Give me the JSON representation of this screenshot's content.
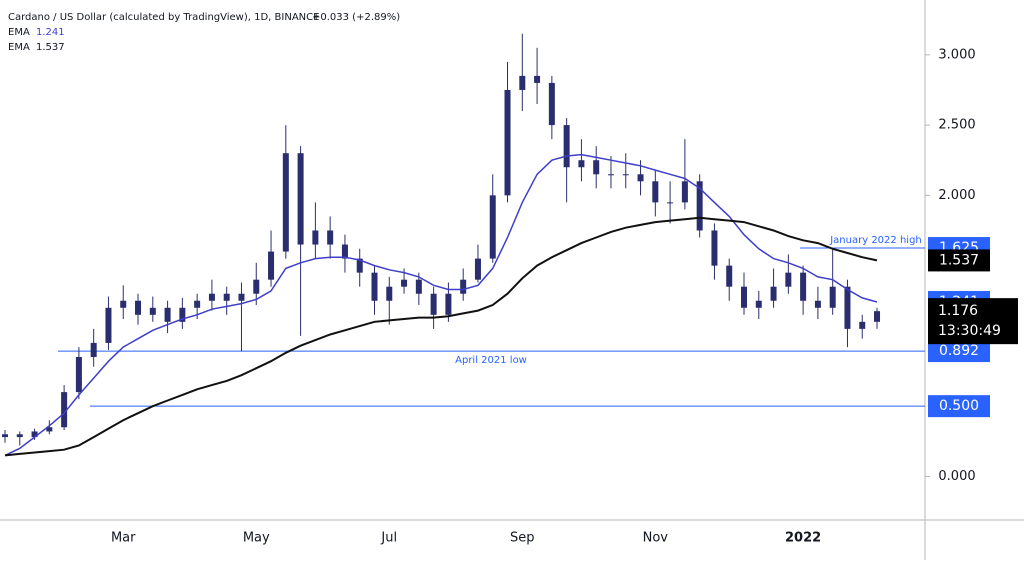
{
  "chart_data": {
    "type": "candlestick",
    "title": "Cardano / US Dollar (calculated by TradingView), 1D, BINANCE",
    "change": "+0.033 (+2.89%)",
    "candle_color": "#2a2e6e",
    "categories": [
      null,
      null,
      null,
      null,
      null,
      null,
      null,
      null,
      "Mar",
      null,
      null,
      null,
      null,
      null,
      null,
      null,
      null,
      "May",
      null,
      null,
      null,
      null,
      null,
      null,
      null,
      null,
      "Jul",
      null,
      null,
      null,
      null,
      null,
      null,
      null,
      null,
      "Sep",
      null,
      null,
      null,
      null,
      null,
      null,
      null,
      null,
      "Nov",
      null,
      null,
      null,
      null,
      null,
      null,
      null,
      null,
      null,
      "2022",
      null,
      null,
      null,
      null,
      null
    ],
    "open": [
      0.28,
      0.3,
      0.28,
      0.32,
      0.35,
      0.6,
      0.85,
      0.95,
      1.2,
      1.25,
      1.15,
      1.2,
      1.1,
      1.2,
      1.25,
      1.3,
      1.25,
      1.3,
      1.4,
      1.6,
      2.3,
      1.65,
      1.75,
      1.65,
      1.55,
      1.45,
      1.25,
      1.35,
      1.4,
      1.3,
      1.15,
      1.3,
      1.4,
      1.55,
      2.0,
      2.75,
      2.85,
      2.8,
      2.5,
      2.2,
      2.25,
      2.15,
      2.15,
      2.15,
      2.1,
      1.95,
      1.95,
      2.1,
      1.75,
      1.5,
      1.35,
      1.2,
      1.25,
      1.35,
      1.45,
      1.25,
      1.2,
      1.35,
      1.05,
      1.1
    ],
    "high": [
      0.33,
      0.32,
      0.34,
      0.4,
      0.65,
      0.92,
      1.05,
      1.28,
      1.36,
      1.3,
      1.28,
      1.25,
      1.27,
      1.3,
      1.4,
      1.35,
      1.38,
      1.52,
      1.75,
      2.5,
      2.35,
      1.95,
      1.85,
      1.72,
      1.62,
      1.5,
      1.42,
      1.48,
      1.45,
      1.35,
      1.38,
      1.48,
      1.65,
      2.15,
      2.95,
      3.15,
      3.05,
      2.85,
      2.55,
      2.4,
      2.35,
      2.28,
      2.3,
      2.25,
      2.18,
      2.1,
      2.4,
      2.15,
      1.8,
      1.55,
      1.45,
      1.32,
      1.48,
      1.58,
      1.5,
      1.35,
      1.62,
      1.4,
      1.15,
      1.2
    ],
    "low": [
      0.24,
      0.22,
      0.26,
      0.3,
      0.33,
      0.55,
      0.78,
      0.9,
      1.12,
      1.08,
      1.1,
      1.02,
      1.05,
      1.12,
      1.18,
      1.15,
      0.89,
      1.22,
      1.35,
      1.55,
      1.0,
      1.55,
      1.55,
      1.45,
      1.35,
      1.15,
      1.08,
      1.3,
      1.22,
      1.05,
      1.1,
      1.25,
      1.38,
      1.52,
      1.95,
      2.6,
      2.65,
      2.4,
      1.95,
      2.1,
      2.05,
      2.05,
      2.05,
      2.0,
      1.85,
      1.8,
      1.9,
      1.7,
      1.4,
      1.25,
      1.15,
      1.12,
      1.2,
      1.3,
      1.15,
      1.12,
      1.15,
      0.92,
      0.98,
      1.05
    ],
    "close": [
      0.3,
      0.28,
      0.32,
      0.35,
      0.6,
      0.85,
      0.95,
      1.2,
      1.25,
      1.15,
      1.2,
      1.1,
      1.2,
      1.25,
      1.3,
      1.25,
      1.3,
      1.4,
      1.6,
      2.3,
      1.65,
      1.75,
      1.65,
      1.55,
      1.45,
      1.25,
      1.35,
      1.4,
      1.3,
      1.15,
      1.3,
      1.4,
      1.55,
      2.0,
      2.75,
      2.85,
      2.8,
      2.5,
      2.2,
      2.25,
      2.15,
      2.15,
      2.15,
      2.1,
      1.95,
      1.95,
      2.1,
      1.75,
      1.5,
      1.35,
      1.2,
      1.25,
      1.35,
      1.45,
      1.25,
      1.2,
      1.35,
      1.05,
      1.1,
      1.176
    ],
    "price_label": "1.176",
    "countdown": "13:30:49",
    "series": [
      {
        "name": "EMA",
        "color": "#3f3fc9",
        "value_label": "1.241",
        "values": [
          0.15,
          0.2,
          0.28,
          0.36,
          0.45,
          0.58,
          0.7,
          0.82,
          0.92,
          0.98,
          1.04,
          1.08,
          1.12,
          1.15,
          1.19,
          1.21,
          1.23,
          1.26,
          1.32,
          1.48,
          1.52,
          1.55,
          1.56,
          1.56,
          1.54,
          1.5,
          1.47,
          1.45,
          1.42,
          1.36,
          1.33,
          1.33,
          1.36,
          1.48,
          1.7,
          1.95,
          2.15,
          2.25,
          2.28,
          2.29,
          2.27,
          2.25,
          2.23,
          2.21,
          2.18,
          2.15,
          2.12,
          2.05,
          1.95,
          1.85,
          1.72,
          1.62,
          1.55,
          1.52,
          1.48,
          1.42,
          1.4,
          1.33,
          1.27,
          1.241
        ]
      },
      {
        "name": "EMA",
        "color": "#111111",
        "value_label": "1.537",
        "values": [
          0.15,
          0.16,
          0.17,
          0.18,
          0.19,
          0.22,
          0.28,
          0.34,
          0.4,
          0.45,
          0.5,
          0.54,
          0.58,
          0.62,
          0.65,
          0.68,
          0.72,
          0.77,
          0.82,
          0.88,
          0.93,
          0.97,
          1.01,
          1.04,
          1.07,
          1.1,
          1.11,
          1.12,
          1.13,
          1.13,
          1.14,
          1.16,
          1.18,
          1.22,
          1.3,
          1.41,
          1.5,
          1.56,
          1.61,
          1.66,
          1.7,
          1.74,
          1.77,
          1.79,
          1.81,
          1.82,
          1.83,
          1.84,
          1.83,
          1.82,
          1.81,
          1.78,
          1.75,
          1.71,
          1.68,
          1.66,
          1.62,
          1.59,
          1.56,
          1.537
        ]
      }
    ],
    "levels": [
      {
        "label": "January 2022 high",
        "value": 1.625,
        "value_label": "1.625"
      },
      {
        "label": "April 2021 low",
        "value": 0.892,
        "value_label": "0.892"
      },
      {
        "value": 0.5,
        "value_label": "0.500"
      }
    ],
    "level_color": "#2962ff",
    "ylim": [
      -0.31,
      3.39
    ],
    "yticks": [
      {
        "value": 0,
        "label": "0.000"
      },
      {
        "value": 2,
        "label": "2.000"
      },
      {
        "value": 2.5,
        "label": "2.500"
      },
      {
        "value": 3,
        "label": "3.000"
      }
    ]
  }
}
